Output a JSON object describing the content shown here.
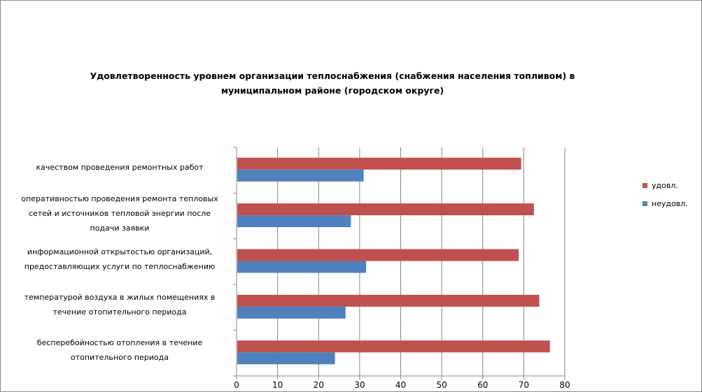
{
  "chart_data": {
    "type": "bar",
    "orientation": "horizontal",
    "title_lines": [
      "Удовлетворенность уровнем организации теплоснабжения (снабжения населения топливом) в",
      "муниципальном районе (городском округе)"
    ],
    "categories": [
      [
        "качеством проведения ремонтных работ"
      ],
      [
        "оперативностью проведения ремонта тепловых",
        "сетей и источников тепловой энергии после",
        "подачи заявки"
      ],
      [
        "информационной открытостью организаций,",
        "предоставляющих услуги по теплоснабжению"
      ],
      [
        "температурой воздуха в жилых помещениях в",
        "течение отопительного периода"
      ],
      [
        "бесперебойностью отопления в течение",
        "отопительного периода"
      ]
    ],
    "series": [
      {
        "name": "удовл.",
        "color": "#c0504d",
        "values": [
          69.2,
          72.3,
          68.6,
          73.6,
          76.2
        ]
      },
      {
        "name": "неудовл.",
        "color": "#4f81bd",
        "values": [
          30.8,
          27.7,
          31.4,
          26.4,
          23.8
        ]
      }
    ],
    "xlim": [
      0,
      80
    ],
    "xticks": [
      "0",
      "10",
      "20",
      "30",
      "40",
      "50",
      "60",
      "70",
      "80"
    ],
    "grid": true,
    "legend_position": "right"
  }
}
